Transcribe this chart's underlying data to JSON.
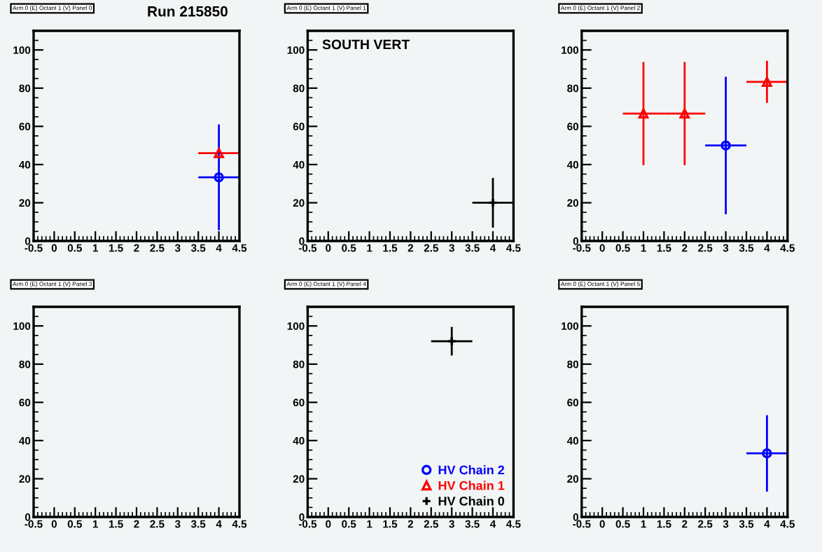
{
  "chart_data": [
    {
      "type": "scatter",
      "title": "Arm 0 (E) Octant 1 (V) Panel 0",
      "annotations": [
        "Run 215850"
      ],
      "xlim": [
        -0.5,
        4.5
      ],
      "ylim": [
        0,
        110
      ],
      "xticks": [
        -0.5,
        0,
        0.5,
        1,
        1.5,
        2,
        2.5,
        3,
        3.5,
        4,
        4.5
      ],
      "yticks": [
        0,
        20,
        40,
        60,
        80,
        100
      ],
      "series": [
        {
          "color": "#ff0000",
          "marker": "triangle",
          "x": [
            4
          ],
          "values": [
            46
          ],
          "xerrors": [
            0.5
          ],
          "errors": [
            null
          ]
        },
        {
          "color": "#0000ff",
          "marker": "circle",
          "x": [
            4
          ],
          "values": [
            33.3
          ],
          "xerrors": [
            0.5
          ],
          "errors": [
            27.7
          ]
        }
      ]
    },
    {
      "type": "scatter",
      "title": "Arm 0 (E) Octant 1 (V) Panel 1",
      "annotations": [
        "SOUTH VERT"
      ],
      "xlim": [
        -0.5,
        4.5
      ],
      "ylim": [
        0,
        110
      ],
      "xticks": [
        -0.5,
        0,
        0.5,
        1,
        1.5,
        2,
        2.5,
        3,
        3.5,
        4,
        4.5
      ],
      "yticks": [
        0,
        20,
        40,
        60,
        80,
        100
      ],
      "series": [
        {
          "color": "#000000",
          "marker": "cross",
          "x": [
            4
          ],
          "values": [
            20
          ],
          "xerrors": [
            0.5
          ],
          "errors": [
            13
          ]
        }
      ]
    },
    {
      "type": "scatter",
      "title": "Arm 0 (E) Octant 1 (V) Panel 2",
      "xlim": [
        -0.5,
        4.5
      ],
      "ylim": [
        0,
        110
      ],
      "xticks": [
        -0.5,
        0,
        0.5,
        1,
        1.5,
        2,
        2.5,
        3,
        3.5,
        4,
        4.5
      ],
      "yticks": [
        0,
        20,
        40,
        60,
        80,
        100
      ],
      "series": [
        {
          "color": "#ff0000",
          "marker": "triangle",
          "x": [
            1,
            2,
            4
          ],
          "values": [
            66.7,
            66.7,
            83.3
          ],
          "xerrors": [
            0.5,
            0.5,
            0.5
          ],
          "errors": [
            27,
            27,
            11
          ]
        },
        {
          "color": "#0000ff",
          "marker": "circle",
          "x": [
            3
          ],
          "values": [
            50
          ],
          "xerrors": [
            0.5
          ],
          "errors": [
            36
          ]
        }
      ]
    },
    {
      "type": "scatter",
      "title": "Arm 0 (E) Octant 1 (V) Panel 3",
      "xlim": [
        -0.5,
        4.5
      ],
      "ylim": [
        0,
        110
      ],
      "xticks": [
        -0.5,
        0,
        0.5,
        1,
        1.5,
        2,
        2.5,
        3,
        3.5,
        4,
        4.5
      ],
      "yticks": [
        0,
        20,
        40,
        60,
        80,
        100
      ]
    },
    {
      "type": "scatter",
      "title": "Arm 0 (E) Octant 1 (V) Panel 4",
      "legend": "bottom right",
      "xlim": [
        -0.5,
        4.5
      ],
      "ylim": [
        0,
        110
      ],
      "xticks": [
        -0.5,
        0,
        0.5,
        1,
        1.5,
        2,
        2.5,
        3,
        3.5,
        4,
        4.5
      ],
      "yticks": [
        0,
        20,
        40,
        60,
        80,
        100
      ],
      "series": [
        {
          "name": "HV Chain 2",
          "color": "#0000ff",
          "marker": "circle"
        },
        {
          "name": "HV Chain 1",
          "color": "#ff0000",
          "marker": "triangle"
        },
        {
          "name": "HV Chain 0",
          "color": "#000000",
          "marker": "cross",
          "x": [
            3
          ],
          "values": [
            92
          ],
          "xerrors": [
            0.5
          ],
          "errors": [
            7.5
          ]
        }
      ]
    },
    {
      "type": "scatter",
      "title": "Arm 0 (E) Octant 1 (V) Panel 5",
      "xlim": [
        -0.5,
        4.5
      ],
      "ylim": [
        0,
        110
      ],
      "xticks": [
        -0.5,
        0,
        0.5,
        1,
        1.5,
        2,
        2.5,
        3,
        3.5,
        4,
        4.5
      ],
      "yticks": [
        0,
        20,
        40,
        60,
        80,
        100
      ],
      "series": [
        {
          "color": "#0000ff",
          "marker": "circle",
          "x": [
            4
          ],
          "values": [
            33.3
          ],
          "xerrors": [
            0.5
          ],
          "errors": [
            20
          ]
        }
      ]
    }
  ]
}
